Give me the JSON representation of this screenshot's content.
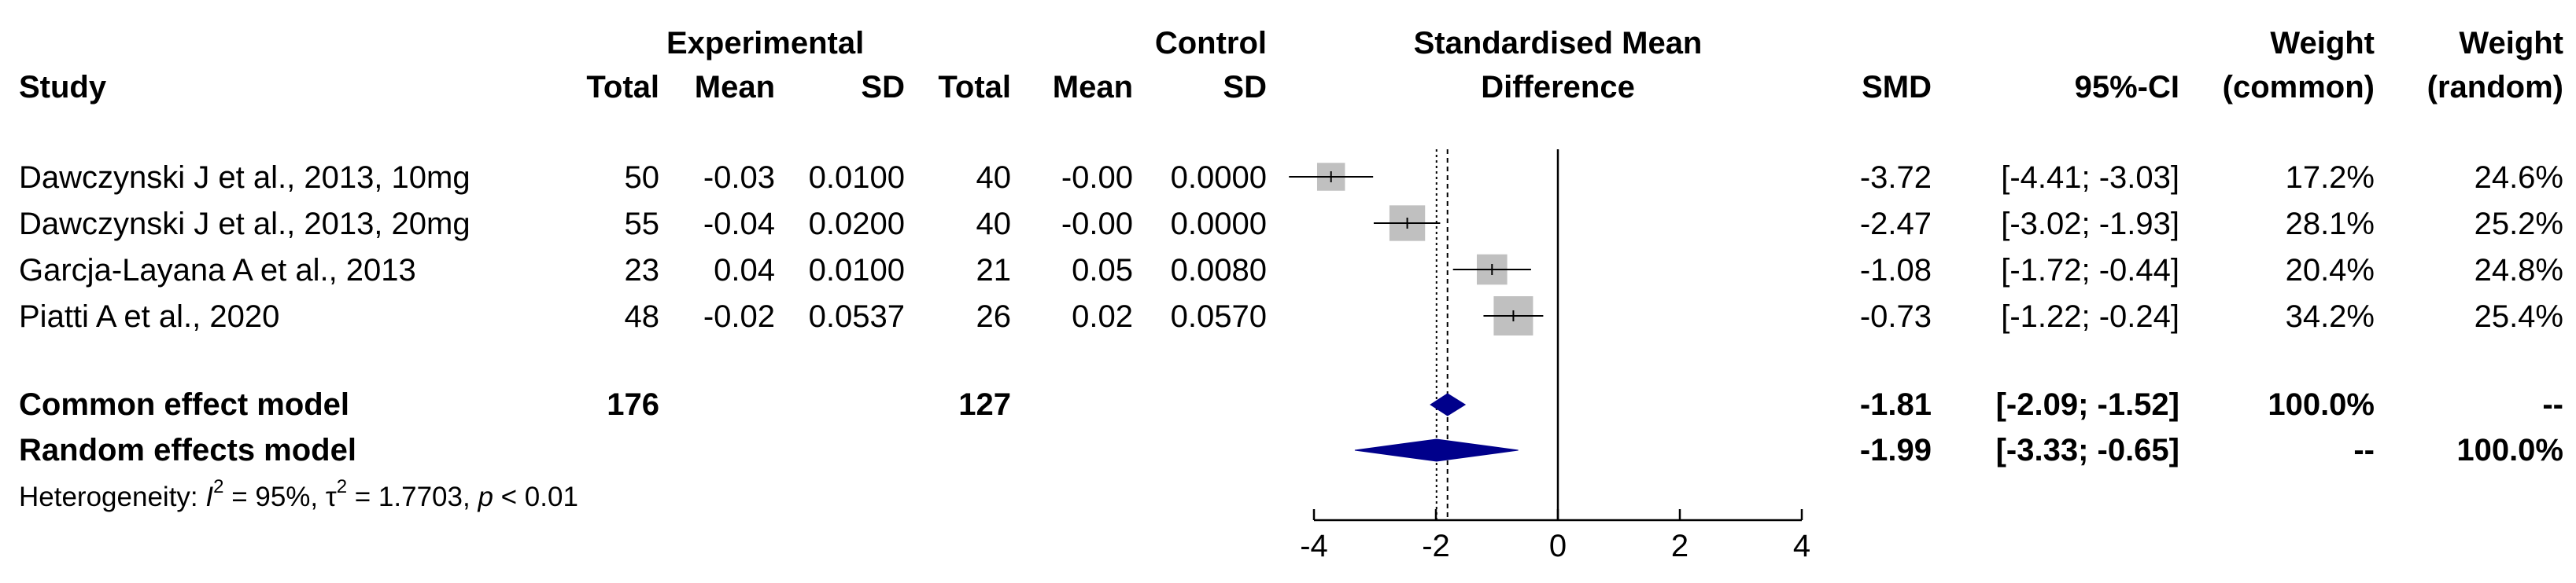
{
  "header": {
    "experimental": "Experimental",
    "control": "Control",
    "smd_line1": "Standardised Mean",
    "smd_line2": "Difference",
    "weight": "Weight",
    "study": "Study",
    "total": "Total",
    "mean": "Mean",
    "sd": "SD",
    "smd": "SMD",
    "ci": "95%-CI",
    "common": "(common)",
    "random": "(random)"
  },
  "studies": [
    {
      "name": "Dawczynski J et al., 2013, 10mg",
      "e_total": "50",
      "e_mean": "-0.03",
      "e_sd": "0.0100",
      "c_total": "40",
      "c_mean": "-0.00",
      "c_sd": "0.0000",
      "smd": "-3.72",
      "ci": "[-4.41; -3.03]",
      "w_common": "17.2%",
      "w_random": "24.6%"
    },
    {
      "name": "Dawczynski J et al., 2013, 20mg",
      "e_total": "55",
      "e_mean": "-0.04",
      "e_sd": "0.0200",
      "c_total": "40",
      "c_mean": "-0.00",
      "c_sd": "0.0000",
      "smd": "-2.47",
      "ci": "[-3.02; -1.93]",
      "w_common": "28.1%",
      "w_random": "25.2%"
    },
    {
      "name": "Garcја-Layana A et al., 2013",
      "e_total": "23",
      "e_mean": "0.04",
      "e_sd": "0.0100",
      "c_total": "21",
      "c_mean": "0.05",
      "c_sd": "0.0080",
      "smd": "-1.08",
      "ci": "[-1.72; -0.44]",
      "w_common": "20.4%",
      "w_random": "24.8%"
    },
    {
      "name": "Piatti A et al., 2020",
      "e_total": "48",
      "e_mean": "-0.02",
      "e_sd": "0.0537",
      "c_total": "26",
      "c_mean": "0.02",
      "c_sd": "0.0570",
      "smd": "-0.73",
      "ci": "[-1.22; -0.24]",
      "w_common": "34.2%",
      "w_random": "25.4%"
    }
  ],
  "common_model": {
    "label": "Common effect model",
    "e_total": "176",
    "c_total": "127",
    "smd": "-1.81",
    "ci": "[-2.09; -1.52]",
    "w_common": "100.0%",
    "w_random": "--"
  },
  "random_model": {
    "label": "Random effects model",
    "smd": "-1.99",
    "ci": "[-3.33; -0.65]",
    "w_common": "--",
    "w_random": "100.0%"
  },
  "heterogeneity": {
    "prefix": "Heterogeneity: ",
    "i_sym": "I",
    "exp": "2",
    "i2_val": " = 95%, ",
    "tau_sym": "τ",
    "tau2_val": " = 1.7703, ",
    "p_sym": "p",
    "p_val": " < 0.01"
  },
  "chart_data": {
    "type": "forest",
    "xlim": [
      -4,
      4
    ],
    "ticks": [
      -4,
      -2,
      0,
      2,
      4
    ],
    "tick_labels": [
      "-4",
      "-2",
      "0",
      "2",
      "4"
    ],
    "null_line": 0,
    "common_estimate": -1.81,
    "common_ci": [
      -2.09,
      -1.52
    ],
    "random_estimate": -1.99,
    "random_ci": [
      -3.33,
      -0.65
    ],
    "studies": [
      {
        "smd": -3.72,
        "lower": -4.41,
        "upper": -3.03,
        "weight_common": 17.2
      },
      {
        "smd": -2.47,
        "lower": -3.02,
        "upper": -1.93,
        "weight_common": 28.1
      },
      {
        "smd": -1.08,
        "lower": -1.72,
        "upper": -0.44,
        "weight_common": 20.4
      },
      {
        "smd": -0.73,
        "lower": -1.22,
        "upper": -0.24,
        "weight_common": 34.2
      }
    ],
    "colors": {
      "box": "#c0c0c0",
      "diamond": "#00008b",
      "line": "#000000"
    }
  }
}
